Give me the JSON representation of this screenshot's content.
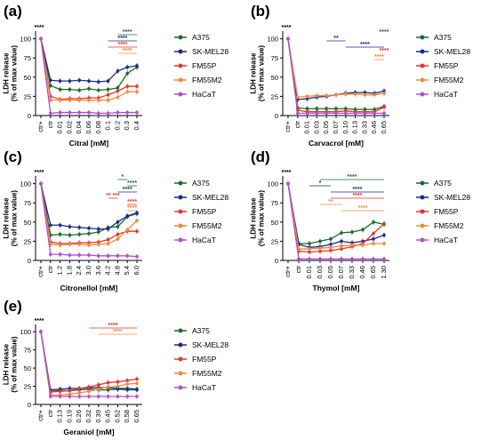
{
  "colors": {
    "A375": "#1a6b2e",
    "SK-MEL28": "#1c2a8c",
    "FM55P": "#e8352b",
    "FM55M2": "#f08a3c",
    "HaCaT": "#b04fd0"
  },
  "series_names": [
    "A375",
    "SK-MEL28",
    "FM55P",
    "FM55M2",
    "HaCaT"
  ],
  "chart_data": [
    {
      "panel": "(a)",
      "type": "line",
      "xlabel": "Citral [mM]",
      "ylabel": "LDH release (% of max value)",
      "ylim": [
        0,
        110
      ],
      "yticks": [
        0,
        25,
        50,
        75,
        100
      ],
      "categories": [
        "ctr+",
        "ctr",
        "0.01",
        "0.02",
        "0.04",
        "0.06",
        "0.08",
        "0.1",
        "0.2",
        "0.3",
        "0.4"
      ],
      "series": [
        {
          "name": "A375",
          "values": [
            100,
            39,
            34,
            34,
            33,
            35,
            33,
            34,
            36,
            55,
            63
          ]
        },
        {
          "name": "SK-MEL28",
          "values": [
            100,
            46,
            45,
            45,
            46,
            45,
            44,
            45,
            58,
            63,
            65
          ]
        },
        {
          "name": "FM55P",
          "values": [
            100,
            25,
            21,
            22,
            22,
            23,
            23,
            27,
            32,
            38,
            38
          ]
        },
        {
          "name": "FM55M2",
          "values": [
            100,
            20,
            20,
            20,
            20,
            20,
            20,
            20,
            24,
            31,
            31
          ]
        },
        {
          "name": "HaCaT",
          "values": [
            100,
            3,
            4,
            4,
            4,
            4,
            3,
            3,
            4,
            4,
            4
          ]
        }
      ],
      "sig": [
        {
          "text": "****",
          "color": "#1a6b2e",
          "x1": 8,
          "x2": 10
        },
        {
          "text": "****",
          "color": "#1c2a8c",
          "x1": 7,
          "x2": 10
        },
        {
          "text": "****",
          "color": "#e8352b",
          "x1": 7,
          "x2": 10
        },
        {
          "text": "****",
          "color": "#f08a3c",
          "x1": 8,
          "x2": 10
        }
      ],
      "ctr_sig": "****"
    },
    {
      "panel": "(b)",
      "type": "line",
      "xlabel": "Carvacrol [mM]",
      "ylabel": "LDH release (% of max value)",
      "ylim": [
        0,
        110
      ],
      "yticks": [
        0,
        25,
        50,
        75,
        100
      ],
      "categories": [
        "ctr+",
        "ctr",
        "0.01",
        "0.03",
        "0.05",
        "0.07",
        "0.10",
        "0.13",
        "0.33",
        "0.46",
        "0.65"
      ],
      "series": [
        {
          "name": "A375",
          "values": [
            100,
            10,
            9,
            9,
            9,
            9,
            9,
            8,
            8,
            8,
            12
          ]
        },
        {
          "name": "SK-MEL28",
          "values": [
            100,
            21,
            22,
            24,
            25,
            27,
            29,
            30,
            30,
            29,
            32
          ]
        },
        {
          "name": "FM55P",
          "values": [
            100,
            7,
            5,
            5,
            5,
            5,
            6,
            5,
            5,
            5,
            11
          ]
        },
        {
          "name": "FM55M2",
          "values": [
            100,
            24,
            25,
            26,
            26,
            27,
            28,
            28,
            27,
            27,
            29
          ]
        },
        {
          "name": "HaCaT",
          "values": [
            100,
            3,
            3,
            3,
            3,
            3,
            3,
            3,
            3,
            3,
            3
          ]
        }
      ],
      "sig": [
        {
          "text": "****",
          "color": "#1a6b2e",
          "x1": 10,
          "x2": 10
        },
        {
          "text": "**",
          "color": "#1c2a8c",
          "x1": 4,
          "x2": 6
        },
        {
          "text": "****",
          "color": "#1c2a8c",
          "x1": 6,
          "x2": 10
        },
        {
          "text": "****",
          "color": "#e8352b",
          "x1": 10,
          "x2": 10
        },
        {
          "text": "****",
          "color": "#f08a3c",
          "x1": 9,
          "x2": 10
        }
      ],
      "ctr_sig": "****"
    },
    {
      "panel": "(c)",
      "type": "line",
      "xlabel": "Citronellol [mM]",
      "ylabel": "LDH release (% of max value)",
      "ylim": [
        0,
        110
      ],
      "yticks": [
        0,
        25,
        50,
        75,
        100
      ],
      "categories": [
        "ctr+",
        "ctr",
        "1.2",
        "1.8",
        "2.4",
        "3.0",
        "3.6",
        "4.2",
        "4.8",
        "5.4",
        "6.0"
      ],
      "series": [
        {
          "name": "A375",
          "values": [
            100,
            33,
            34,
            33,
            34,
            35,
            37,
            43,
            44,
            57,
            61
          ]
        },
        {
          "name": "SK-MEL28",
          "values": [
            100,
            46,
            46,
            44,
            43,
            42,
            41,
            41,
            50,
            58,
            62
          ]
        },
        {
          "name": "FM55P",
          "values": [
            100,
            24,
            22,
            22,
            23,
            23,
            24,
            27,
            34,
            38,
            38
          ]
        },
        {
          "name": "FM55M2",
          "values": [
            100,
            21,
            20,
            21,
            21,
            20,
            21,
            22,
            28,
            40,
            52
          ]
        },
        {
          "name": "HaCaT",
          "values": [
            100,
            8,
            8,
            7,
            7,
            7,
            6,
            6,
            6,
            6,
            5
          ]
        }
      ],
      "sig": [
        {
          "text": "*",
          "color": "#1a6b2e",
          "x1": 8,
          "x2": 9
        },
        {
          "text": "****",
          "color": "#1a6b2e",
          "x1": 9,
          "x2": 10
        },
        {
          "text": "****",
          "color": "#1c2a8c",
          "x1": 8,
          "x2": 10
        },
        {
          "text": "** ***",
          "color": "#e8352b",
          "x1": 7,
          "x2": 8
        },
        {
          "text": "****",
          "color": "#e8352b",
          "x1": 9,
          "x2": 10
        },
        {
          "text": "****",
          "color": "#f08a3c",
          "x1": 9,
          "x2": 10
        }
      ],
      "ctr_sig": "****"
    },
    {
      "panel": "(d)",
      "type": "line",
      "xlabel": "Thymol [mM]",
      "ylabel": "LDH release (% of max value)",
      "ylim": [
        0,
        110
      ],
      "yticks": [
        0,
        25,
        50,
        75,
        100
      ],
      "categories": [
        "ctr+",
        "ctr",
        "0.01",
        "0.03",
        "0.05",
        "0.07",
        "0.33",
        "0.46",
        "0.65",
        "1.30"
      ],
      "series": [
        {
          "name": "A375",
          "values": [
            100,
            22,
            22,
            25,
            28,
            36,
            37,
            40,
            50,
            47
          ]
        },
        {
          "name": "SK-MEL28",
          "values": [
            100,
            21,
            17,
            18,
            21,
            25,
            23,
            25,
            28,
            33
          ]
        },
        {
          "name": "FM55P",
          "values": [
            100,
            12,
            11,
            12,
            13,
            15,
            18,
            22,
            35,
            48
          ]
        },
        {
          "name": "FM55M2",
          "values": [
            100,
            15,
            15,
            16,
            17,
            19,
            20,
            20,
            22,
            22
          ]
        },
        {
          "name": "HaCaT",
          "values": [
            100,
            2,
            2,
            2,
            2,
            2,
            2,
            2,
            2,
            2
          ]
        }
      ],
      "sig": [
        {
          "text": "****",
          "color": "#1a6b2e",
          "x1": 3,
          "x2": 9
        },
        {
          "text": "*",
          "color": "#1c2a8c",
          "x1": 2,
          "x2": 4
        },
        {
          "text": "****",
          "color": "#1c2a8c",
          "x1": 4,
          "x2": 9
        },
        {
          "text": "****",
          "color": "#e8352b",
          "x1": 4,
          "x2": 9
        },
        {
          "text": "**",
          "color": "#f08a3c",
          "x1": 3,
          "x2": 5
        },
        {
          "text": "****",
          "color": "#f08a3c",
          "x1": 5,
          "x2": 9
        }
      ],
      "ctr_sig": "****"
    },
    {
      "panel": "(e)",
      "type": "line",
      "xlabel": "Geraniol [mM]",
      "ylabel": "LDH release (% of max value)",
      "ylim": [
        0,
        110
      ],
      "yticks": [
        0,
        25,
        50,
        75,
        100
      ],
      "categories": [
        "ctr+",
        "ctr",
        "0.13",
        "0.19",
        "0.26",
        "0.32",
        "0.39",
        "0.45",
        "0.52",
        "0.58",
        "0.65"
      ],
      "series": [
        {
          "name": "A375",
          "values": [
            100,
            18,
            19,
            19,
            20,
            21,
            20,
            20,
            21,
            20,
            20
          ]
        },
        {
          "name": "SK-MEL28",
          "values": [
            100,
            20,
            21,
            22,
            22,
            23,
            23,
            23,
            22,
            22,
            21
          ]
        },
        {
          "name": "FM55P",
          "values": [
            100,
            17,
            18,
            19,
            22,
            24,
            27,
            30,
            31,
            33,
            35
          ]
        },
        {
          "name": "FM55M2",
          "values": [
            100,
            13,
            13,
            14,
            16,
            18,
            21,
            24,
            25,
            28,
            29
          ]
        },
        {
          "name": "HaCaT",
          "values": [
            100,
            11,
            11,
            11,
            11,
            11,
            11,
            11,
            11,
            11,
            11
          ]
        }
      ],
      "sig": [
        {
          "text": "****",
          "color": "#e8352b",
          "x1": 5,
          "x2": 10
        },
        {
          "text": "****",
          "color": "#f08a3c",
          "x1": 6,
          "x2": 10
        }
      ],
      "ctr_sig": "****"
    }
  ]
}
